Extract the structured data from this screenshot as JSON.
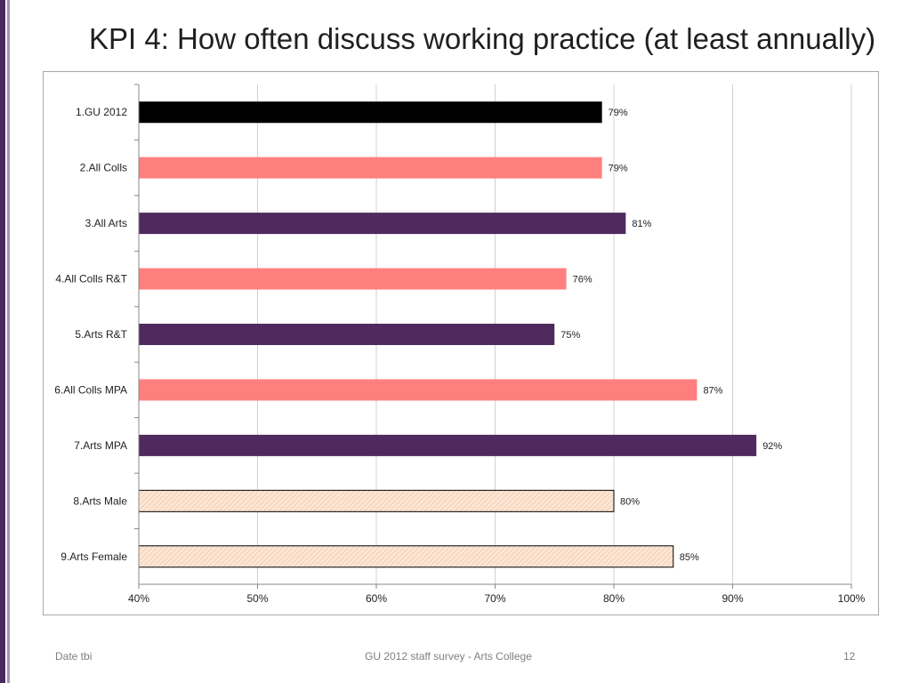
{
  "slide": {
    "title": "KPI 4: How often discuss working practice (at least annually)",
    "footer_left": "Date tbi",
    "footer_center": "GU 2012 staff survey -  Arts College",
    "page_number": "12"
  },
  "colors": {
    "sidebar_dark": "#4a2a5c",
    "sidebar_light": "#a892b8",
    "black": "#000000",
    "salmon": "#ff7f7f",
    "purple": "#4f2a5e",
    "peach": "#fde6d4"
  },
  "chart_data": {
    "type": "bar",
    "orientation": "horizontal",
    "categories": [
      "1.GU 2012",
      "2.All Colls",
      "3.All Arts",
      "4.All Colls R&T",
      "5.Arts R&T",
      "6.All Colls MPA",
      "7.Arts MPA",
      "8.Arts Male",
      "9.Arts Female"
    ],
    "values": [
      79,
      79,
      81,
      76,
      75,
      87,
      92,
      80,
      85
    ],
    "data_labels": [
      "79%",
      "79%",
      "81%",
      "76%",
      "75%",
      "87%",
      "92%",
      "80%",
      "85%"
    ],
    "bar_colors": [
      "#000000",
      "#ff7f7f",
      "#4f2a5e",
      "#ff7f7f",
      "#4f2a5e",
      "#ff7f7f",
      "#4f2a5e",
      "#fde6d4",
      "#fde6d4"
    ],
    "bar_patterns": [
      "solid",
      "solid",
      "solid",
      "solid",
      "solid",
      "solid",
      "solid",
      "hatched",
      "hatched"
    ],
    "xlim": [
      40,
      100
    ],
    "xticks": [
      40,
      50,
      60,
      70,
      80,
      90,
      100
    ],
    "xtick_labels": [
      "40%",
      "50%",
      "60%",
      "70%",
      "80%",
      "90%",
      "100%"
    ],
    "grid": true,
    "title": "",
    "xlabel": "",
    "ylabel": ""
  }
}
